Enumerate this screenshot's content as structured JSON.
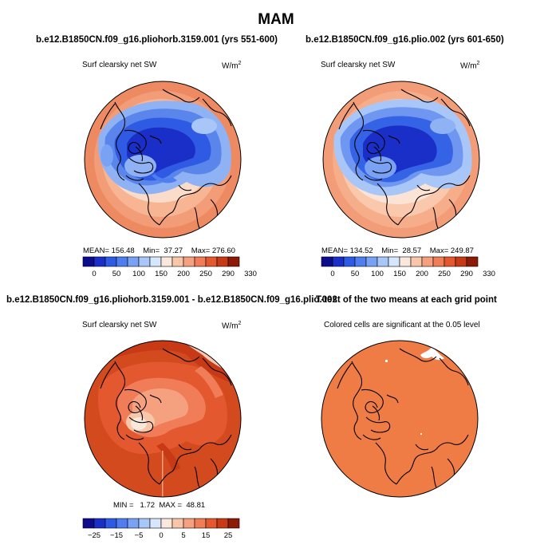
{
  "title": "MAM",
  "panels": [
    {
      "title": "b.e12.B1850CN.f09_g16.pliohorb.3159.001 (yrs 551-600)",
      "variable": "Surf clearsky net SW",
      "units": "W/m",
      "units_sup": "2",
      "stats": {
        "mean_label": "MEAN=",
        "mean": "156.48",
        "min_label": "Min=",
        "min": "37.27",
        "max_label": "Max=",
        "max": "276.60"
      }
    },
    {
      "title": "b.e12.B1850CN.f09_g16.plio.002 (yrs 601-650)",
      "variable": "Surf clearsky net SW",
      "units": "W/m",
      "units_sup": "2",
      "stats": {
        "mean_label": "MEAN=",
        "mean": "134.52",
        "min_label": "Min=",
        "min": "28.57",
        "max_label": "Max=",
        "max": "249.87"
      }
    },
    {
      "title": "b.e12.B1850CN.f09_g16.pliohorb.3159.001 - b.e12.B1850CN.f09_g16.plio.002",
      "variable": "Surf clearsky net SW",
      "units": "W/m",
      "units_sup": "2",
      "stats": {
        "min_label": "MIN =",
        "min": "1.72",
        "max_label": "MAX =",
        "max": "48.81"
      }
    },
    {
      "title": "T-test of the two means at each grid point",
      "subtitle": "Colored cells are significant at the 0.05 level"
    }
  ],
  "colorbars": {
    "absolute": {
      "colors": [
        "#0c0c8c",
        "#1a2fc8",
        "#2f5be4",
        "#4f7ef0",
        "#79a2f4",
        "#a8c6f8",
        "#d6e6fc",
        "#fbe8dc",
        "#f8c6a8",
        "#f5a07e",
        "#f07c58",
        "#e4582f",
        "#c83a16",
        "#8c1a06"
      ],
      "tick_labels": [
        "0",
        "50",
        "100",
        "150",
        "200",
        "250",
        "290",
        "330"
      ]
    },
    "difference": {
      "colors": [
        "#0c0c8c",
        "#1a2fc8",
        "#2f5be4",
        "#4f7ef0",
        "#79a2f4",
        "#a8c6f8",
        "#d6e6fc",
        "#fbe8dc",
        "#f8c6a8",
        "#f5a07e",
        "#f07c58",
        "#e4582f",
        "#c83a16",
        "#8c1a06"
      ],
      "tick_labels": [
        "−25",
        "−15",
        "−5",
        "0",
        "5",
        "15",
        "25"
      ]
    }
  }
}
